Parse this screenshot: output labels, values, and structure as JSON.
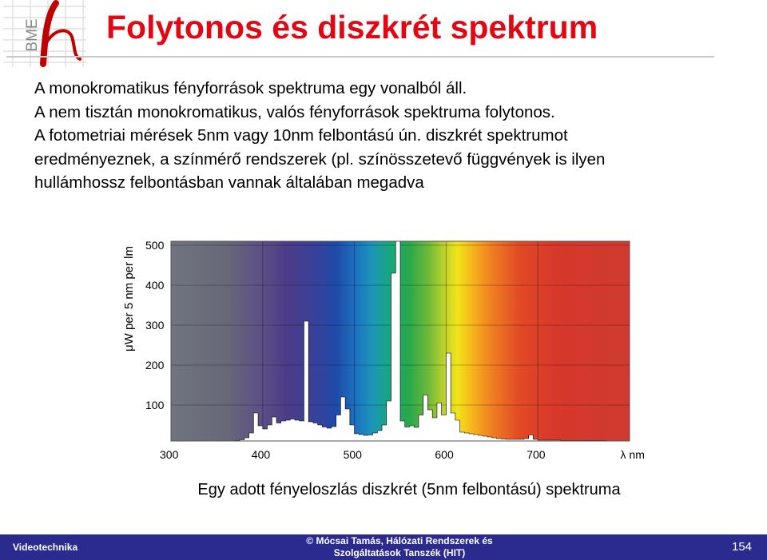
{
  "logo": {
    "text": "BME",
    "icon": "bme-h-logo-icon"
  },
  "slide": {
    "title": "Folytonos és diszkrét spektrum",
    "bullets": [
      "A monokromatikus fényforrások spektruma egy vonalból áll.",
      "A nem tisztán monokromatikus, valós fényforrások spektruma folytonos.",
      "A fotometriai mérések 5nm vagy 10nm felbontású ún. diszkrét spektrumot",
      "eredményeznek, a színmérő rendszerek (pl. színösszetevő függvények is ilyen",
      "hullámhossz felbontásban vannak általában megadva"
    ],
    "caption": "Egy adott fényeloszlás diszkrét (5nm felbontású) spektruma"
  },
  "chart_data": {
    "type": "area",
    "ylabel": "μW per 5 nm per lm",
    "xlabel": "λ nm",
    "x_ticks": [
      300,
      400,
      500,
      600,
      700
    ],
    "y_ticks": [
      100,
      200,
      300,
      400,
      500
    ],
    "xlim": [
      300,
      800
    ],
    "ylim": [
      10,
      510
    ],
    "grid": true,
    "background": "visible color spectrum gradient",
    "x": [
      300,
      305,
      310,
      315,
      320,
      325,
      330,
      335,
      340,
      345,
      350,
      355,
      360,
      365,
      370,
      375,
      380,
      385,
      390,
      395,
      400,
      405,
      410,
      415,
      420,
      425,
      430,
      435,
      440,
      445,
      450,
      455,
      460,
      465,
      470,
      475,
      480,
      485,
      490,
      495,
      500,
      505,
      510,
      515,
      520,
      525,
      530,
      535,
      540,
      545,
      550,
      555,
      560,
      565,
      570,
      575,
      580,
      585,
      590,
      595,
      600,
      605,
      610,
      615,
      620,
      625,
      630,
      635,
      640,
      645,
      650,
      655,
      660,
      665,
      670,
      675,
      680,
      685,
      690,
      695,
      700,
      705,
      710,
      715,
      720,
      725,
      730,
      735,
      740,
      745,
      750,
      755,
      760,
      765,
      770,
      775,
      780,
      785,
      790,
      795,
      800
    ],
    "values": [
      10,
      10,
      10,
      10,
      10,
      10,
      10,
      10,
      10,
      10,
      10,
      10,
      10,
      10,
      11,
      13,
      18,
      30,
      80,
      48,
      40,
      50,
      70,
      55,
      60,
      62,
      65,
      62,
      60,
      310,
      58,
      55,
      50,
      45,
      42,
      46,
      75,
      120,
      90,
      50,
      28,
      26,
      24,
      25,
      30,
      36,
      50,
      110,
      430,
      510,
      60,
      45,
      48,
      44,
      75,
      125,
      88,
      68,
      105,
      75,
      230,
      80,
      62,
      32,
      30,
      28,
      26,
      24,
      22,
      20,
      18,
      16,
      15,
      14,
      14,
      14,
      14,
      16,
      25,
      14,
      12,
      12,
      12,
      12,
      12,
      11,
      11,
      11,
      11,
      11,
      11,
      11,
      11,
      11,
      11,
      10,
      10,
      10,
      10,
      10,
      10
    ]
  },
  "footer": {
    "left": "Videotechnika",
    "center_line1": "© Mócsai Tamás, Hálózati Rendszerek és",
    "center_line2": "Szolgáltatások Tanszék (HIT)",
    "page_number": "154",
    "bar_color": "#2b2a8f"
  }
}
